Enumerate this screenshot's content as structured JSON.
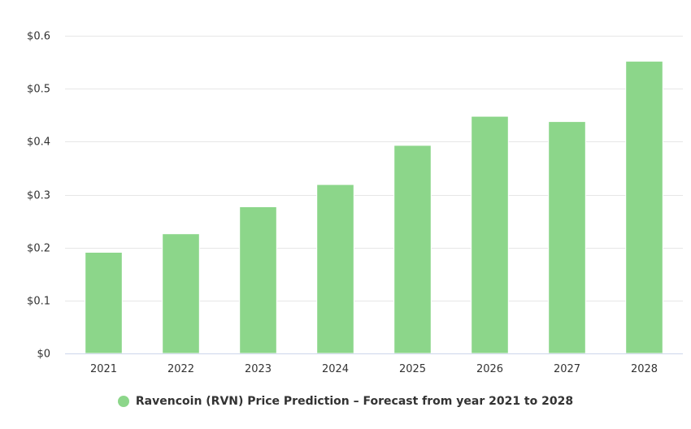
{
  "chart_data": {
    "type": "bar",
    "title": "",
    "xlabel": "",
    "ylabel": "",
    "categories": [
      "2021",
      "2022",
      "2023",
      "2024",
      "2025",
      "2026",
      "2027",
      "2028"
    ],
    "series": [
      {
        "name": "Ravencoin (RVN) Price Prediction - Forecast from year 2021 to 2028",
        "color": "#8cd68a",
        "values": [
          0.191,
          0.226,
          0.277,
          0.319,
          0.393,
          0.448,
          0.438,
          0.552
        ]
      }
    ],
    "ylim": [
      0,
      0.6
    ],
    "yticks": [
      0,
      0.1,
      0.2,
      0.3,
      0.4,
      0.5,
      0.6
    ],
    "ytick_labels": [
      "$0",
      "$0.1",
      "$0.2",
      "$0.3",
      "$0.4",
      "$0.5",
      "$0.6"
    ],
    "grid": true,
    "legend_position": "bottom-center"
  },
  "legend": {
    "label": "Ravencoin (RVN) Price Prediction – Forecast from year 2021 to 2028",
    "color": "#8cd68a"
  },
  "colors": {
    "grid": "#e6e6e6",
    "axis": "#ccd6eb",
    "text": "#333333"
  }
}
